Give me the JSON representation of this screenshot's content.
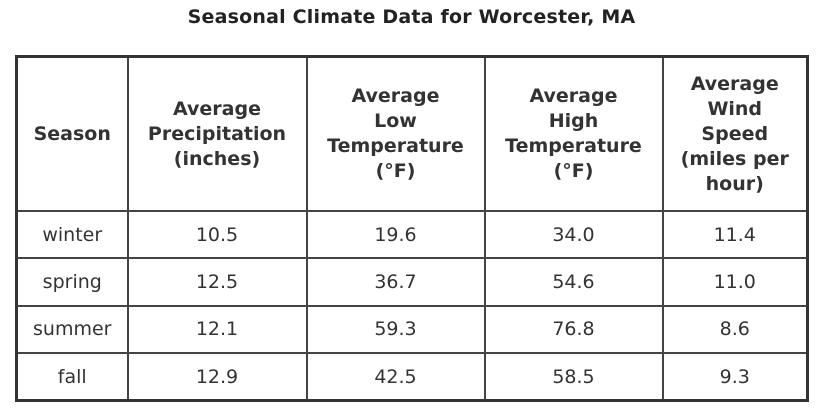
{
  "title": "Seasonal Climate Data for Worcester, MA",
  "table": {
    "headers": [
      [
        "Season"
      ],
      [
        "Average",
        "Precipitation",
        "(inches)"
      ],
      [
        "Average",
        "Low",
        "Temperature",
        "(°F)"
      ],
      [
        "Average",
        "High",
        "Temperature",
        "(°F)"
      ],
      [
        "Average",
        "Wind",
        "Speed",
        "(miles per",
        "hour)"
      ]
    ],
    "rows": [
      [
        "winter",
        "10.5",
        "19.6",
        "34.0",
        "11.4"
      ],
      [
        "spring",
        "12.5",
        "36.7",
        "54.6",
        "11.0"
      ],
      [
        "summer",
        "12.1",
        "59.3",
        "76.8",
        "8.6"
      ],
      [
        "fall",
        "12.9",
        "42.5",
        "58.5",
        "9.3"
      ]
    ]
  }
}
